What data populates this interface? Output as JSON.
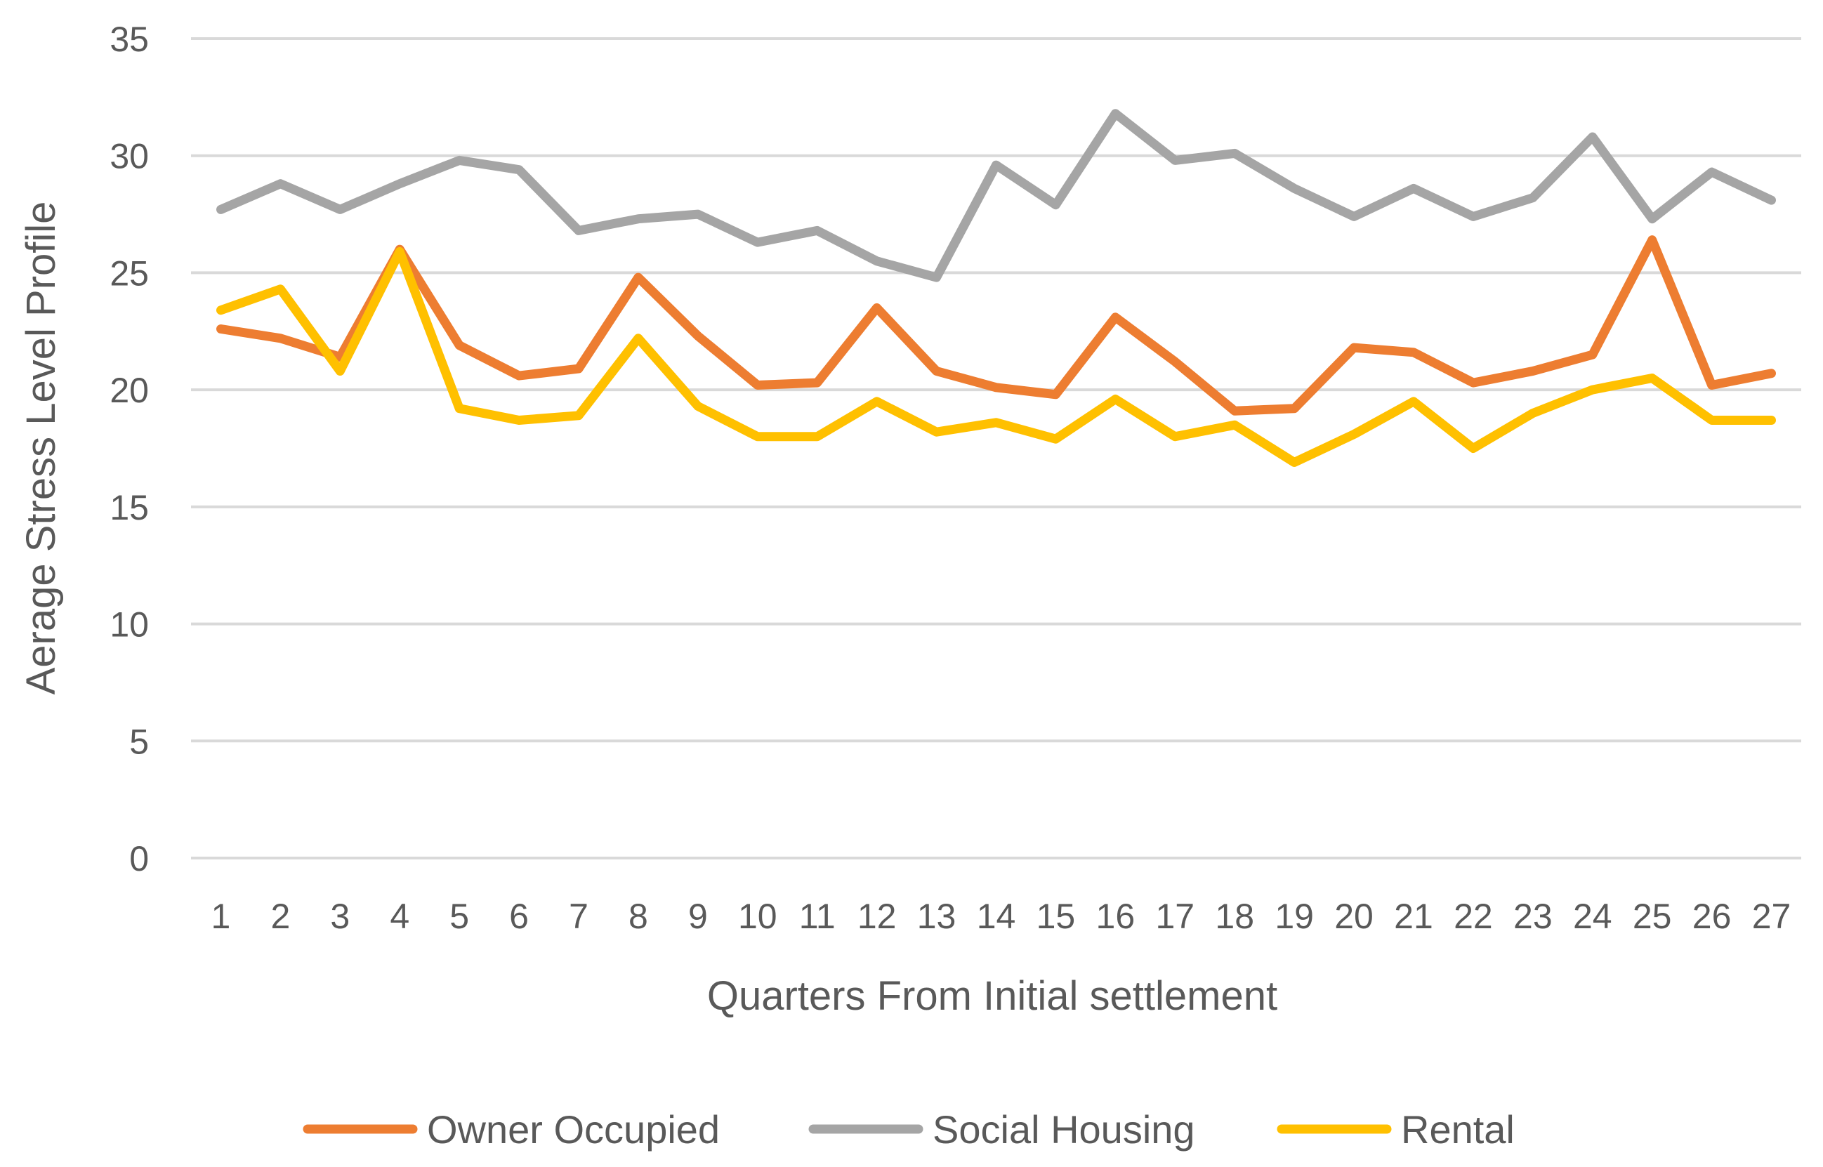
{
  "chart_data": {
    "type": "line",
    "title": "",
    "xlabel": "Quarters From Initial settlement",
    "ylabel": "Aerage Stress Level Profile",
    "ylim": [
      0,
      35
    ],
    "yticks": [
      0,
      5,
      10,
      15,
      20,
      25,
      30,
      35
    ],
    "grid": true,
    "legend_position": "bottom",
    "categories": [
      "1",
      "2",
      "3",
      "4",
      "5",
      "6",
      "7",
      "8",
      "9",
      "10",
      "11",
      "12",
      "13",
      "14",
      "15",
      "16",
      "17",
      "18",
      "19",
      "20",
      "21",
      "22",
      "23",
      "24",
      "25",
      "26",
      "27"
    ],
    "series": [
      {
        "name": "Owner Occupied",
        "color": "#ed7d31",
        "values": [
          22.6,
          22.2,
          21.4,
          26.0,
          21.9,
          20.6,
          20.9,
          24.8,
          22.3,
          20.2,
          20.3,
          23.5,
          20.8,
          20.1,
          19.8,
          23.1,
          21.2,
          19.1,
          19.2,
          21.8,
          21.6,
          20.3,
          20.8,
          21.5,
          26.4,
          20.2,
          20.7
        ]
      },
      {
        "name": "Social Housing",
        "color": "#a5a5a5",
        "values": [
          27.7,
          28.8,
          27.7,
          28.8,
          29.8,
          29.4,
          26.8,
          27.3,
          27.5,
          26.3,
          26.8,
          25.5,
          24.8,
          29.6,
          27.9,
          31.8,
          29.8,
          30.1,
          28.6,
          27.4,
          28.6,
          27.4,
          28.2,
          30.8,
          27.3,
          29.3,
          28.1
        ]
      },
      {
        "name": "Rental",
        "color": "#ffc000",
        "values": [
          23.4,
          24.3,
          20.8,
          25.9,
          19.2,
          18.7,
          18.9,
          22.2,
          19.3,
          18.0,
          18.0,
          19.5,
          18.2,
          18.6,
          17.9,
          19.6,
          18.0,
          18.5,
          16.9,
          18.1,
          19.5,
          17.5,
          19.0,
          20.0,
          20.5,
          18.7,
          18.7
        ]
      }
    ]
  }
}
